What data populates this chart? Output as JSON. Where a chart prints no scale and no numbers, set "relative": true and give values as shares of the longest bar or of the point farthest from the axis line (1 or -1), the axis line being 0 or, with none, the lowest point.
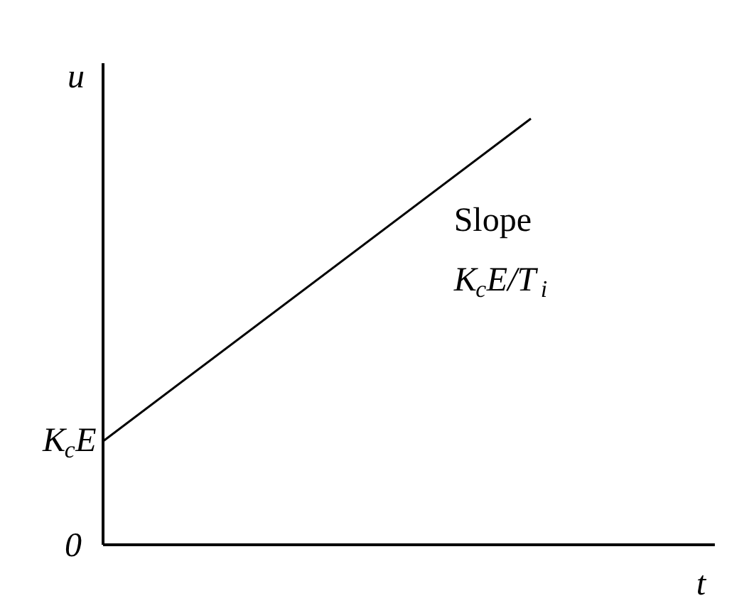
{
  "chart_data": {
    "type": "line",
    "relative": true,
    "xlabel": "t",
    "ylabel": "u",
    "categories": [
      null,
      null
    ],
    "series": [
      {
        "color": "#000000",
        "values": [
          0.243,
          1
        ]
      }
    ],
    "annotations": [
      "0",
      "K$_{c}$E",
      "Slope",
      "K$_{c}$E/T$_{i}$"
    ],
    "grid": false,
    "marker": "none",
    "line_style": "solid"
  }
}
